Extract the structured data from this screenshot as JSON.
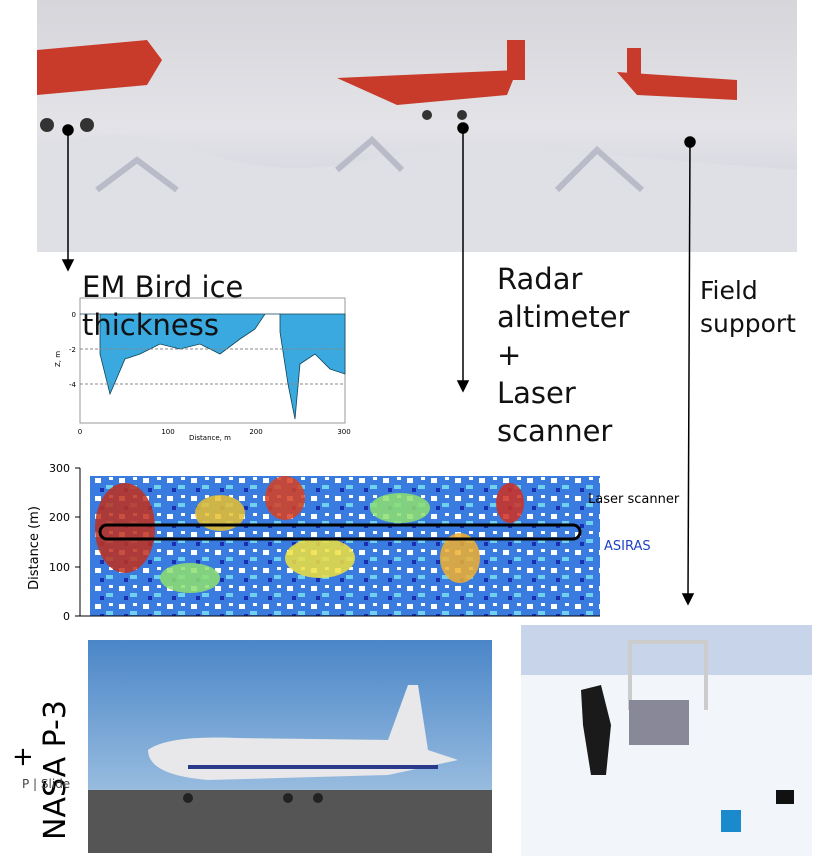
{
  "labels": {
    "em_bird": [
      "EM Bird ice",
      "thickness"
    ],
    "radar": [
      "Radar",
      "altimeter",
      "+",
      "Laser",
      "scanner"
    ],
    "field_support": [
      "Field",
      "support"
    ],
    "nasa": "NASA P-3",
    "plus": "+",
    "slide_fragment": "P | Slide"
  },
  "em_profile": {
    "yaxis": "Z, m",
    "xaxis": "Distance, m",
    "yticks": [
      "0",
      "-2",
      "-4"
    ],
    "xticks": [
      "0",
      "100",
      "200",
      "300"
    ]
  },
  "laser_map": {
    "yaxis": "Distance (m)",
    "yticks": [
      "300",
      "200",
      "100",
      "0"
    ],
    "legend": [
      "Laser scanner",
      "ASIRAS"
    ]
  }
}
